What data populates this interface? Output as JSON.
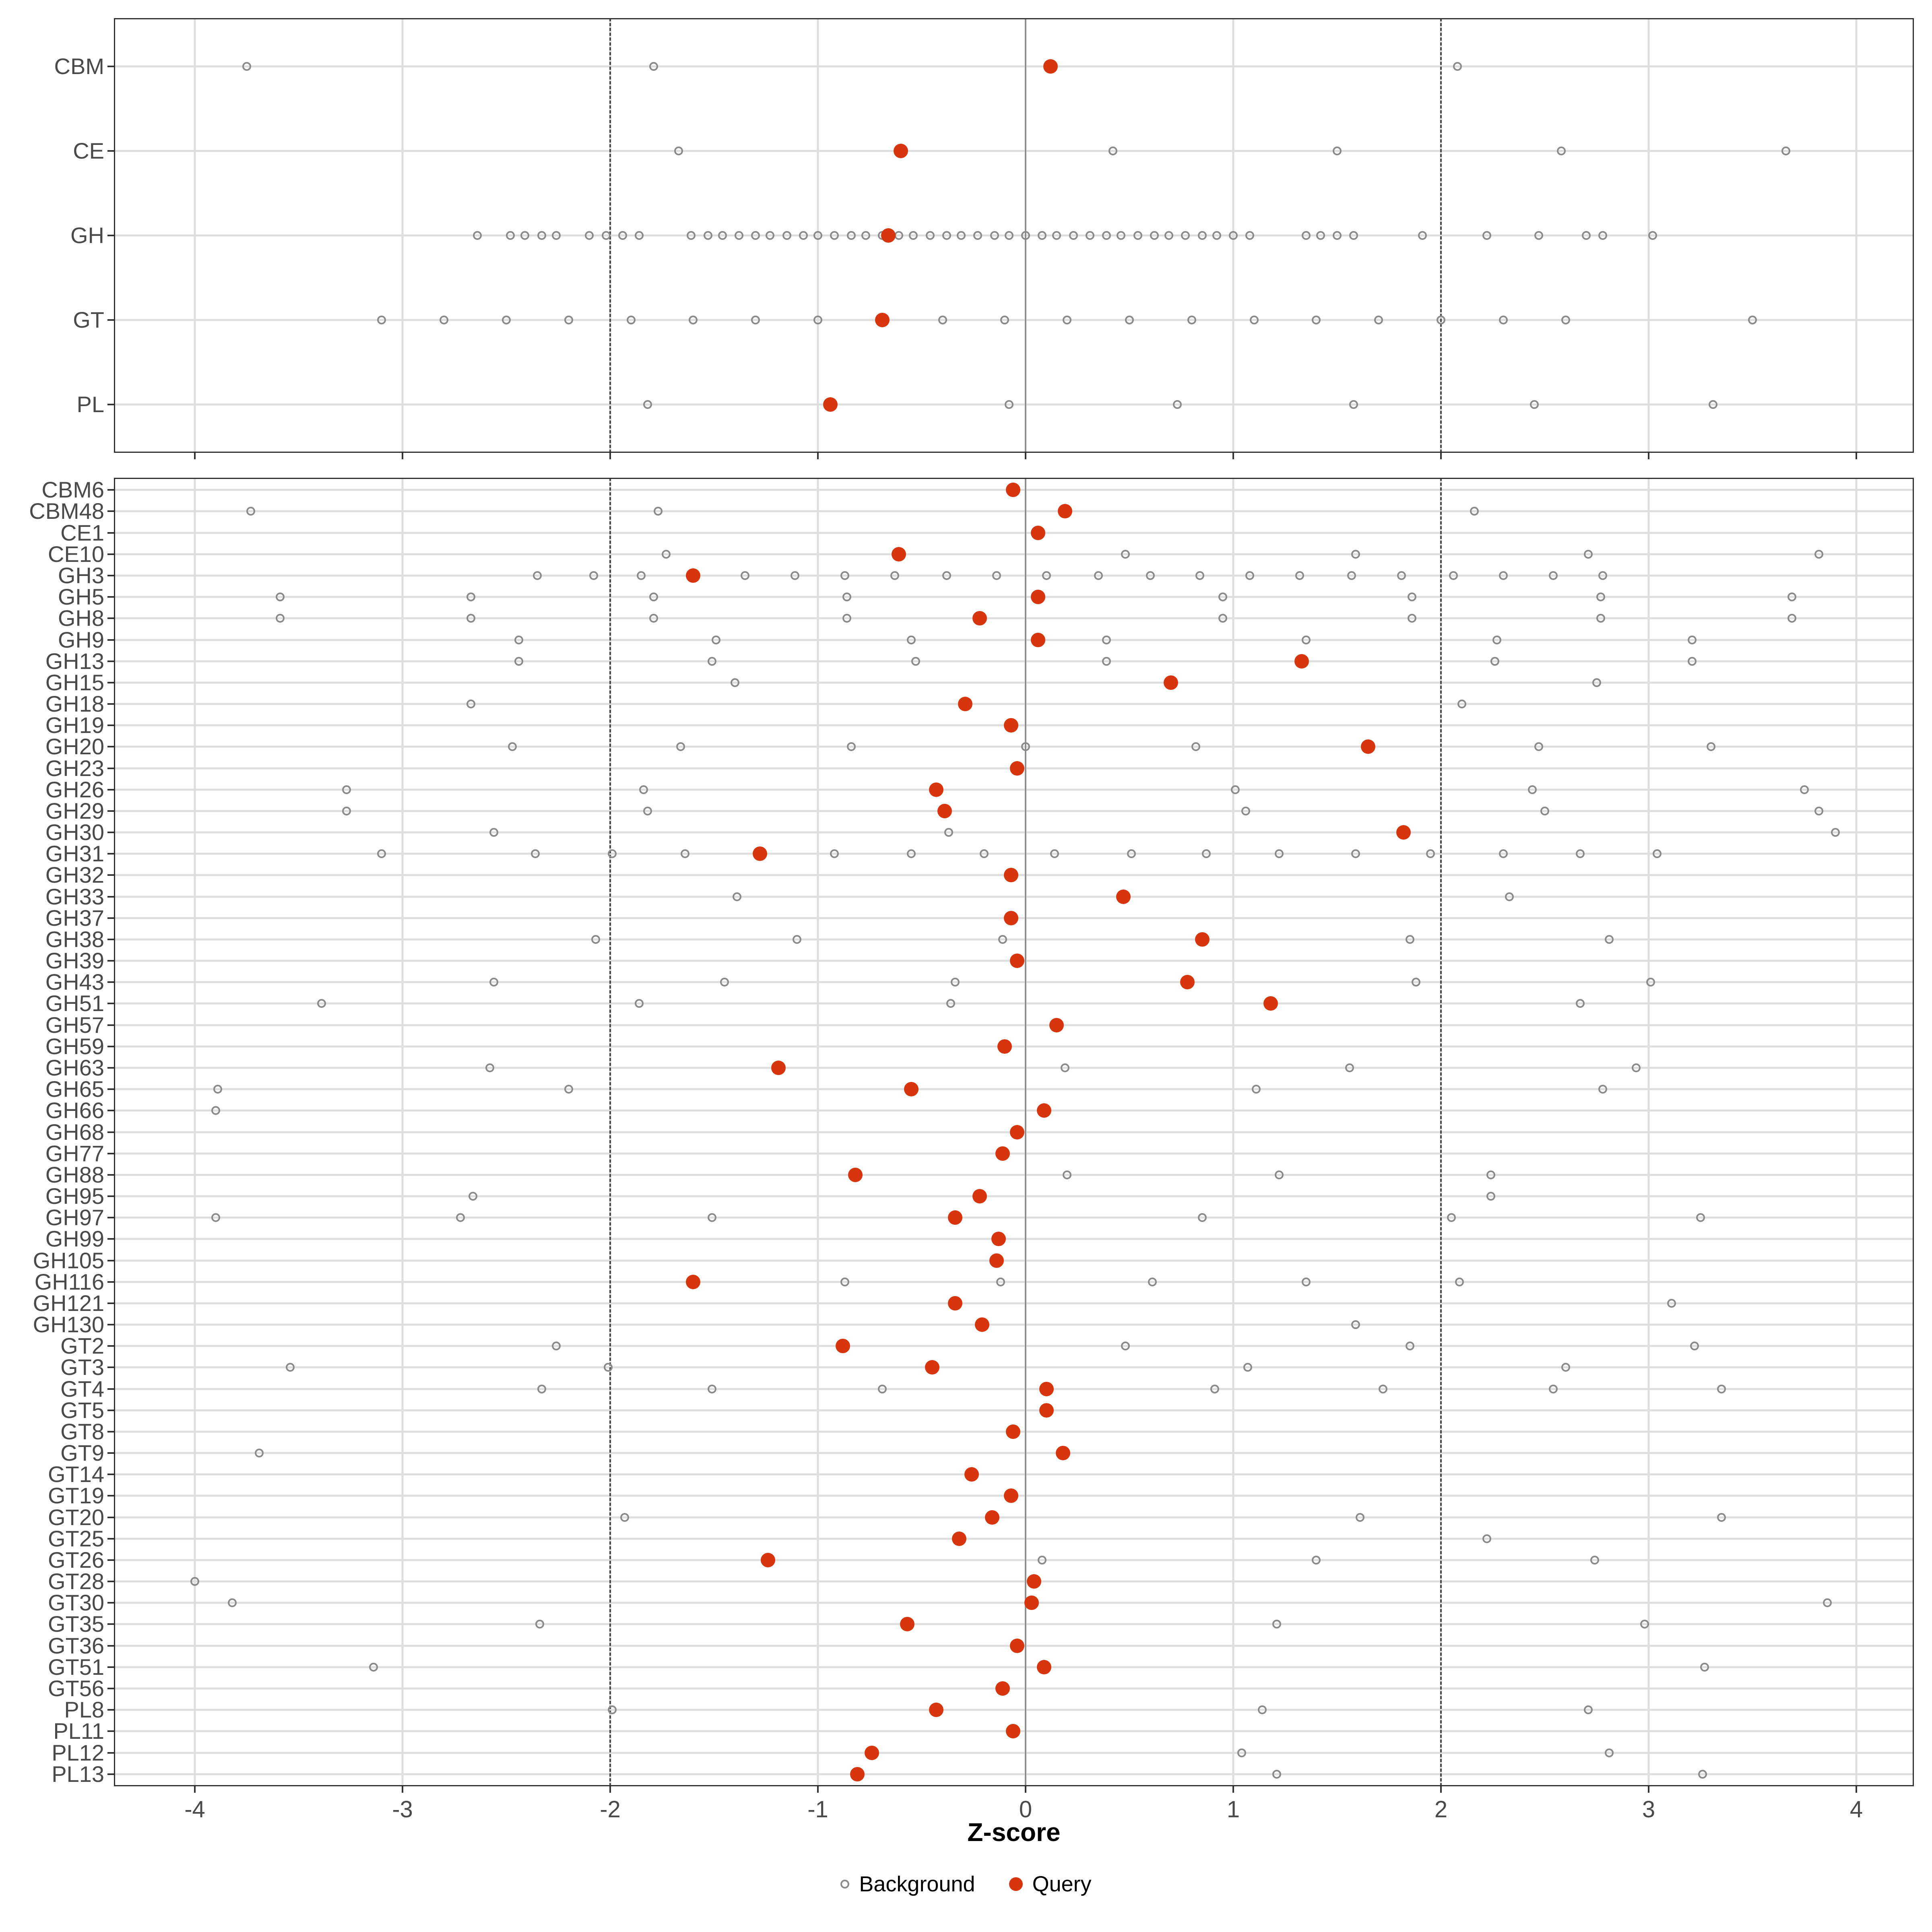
{
  "chart_data": {
    "type": "scatter",
    "xlabel": "Z-score",
    "x_ticks": [
      -4,
      -3,
      -2,
      -1,
      0,
      1,
      2,
      3,
      4
    ],
    "x_tick_labels": [
      "-4",
      "-3",
      "-2",
      "-1",
      "0",
      "1",
      "2",
      "3",
      "4"
    ],
    "x_range": [
      -4.39,
      4.28
    ],
    "grid": true,
    "reference_lines": {
      "solid_at": 0,
      "dashed_at": [
        -2,
        2
      ]
    },
    "legend_position": "bottom",
    "legend": [
      {
        "label": "Background",
        "marker": "open-circle",
        "color": "#8a8a8a"
      },
      {
        "label": "Query",
        "marker": "filled-circle",
        "color": "#d7350d"
      }
    ],
    "panels": [
      {
        "name": "class-level",
        "rows": [
          {
            "label": "CBM",
            "query": 0.12,
            "background": [
              -3.75,
              -1.79,
              2.08
            ]
          },
          {
            "label": "CE",
            "query": -0.6,
            "background": [
              -1.67,
              0.42,
              1.5,
              2.58,
              3.66
            ]
          },
          {
            "label": "GH",
            "query": -0.66,
            "background": [
              -2.64,
              -2.48,
              -2.41,
              -2.33,
              -2.26,
              -2.1,
              -2.02,
              -1.94,
              -1.86,
              -1.61,
              -1.53,
              -1.46,
              -1.38,
              -1.3,
              -1.23,
              -1.15,
              -1.07,
              -1.0,
              -0.92,
              -0.84,
              -0.77,
              -0.69,
              -0.61,
              -0.54,
              -0.46,
              -0.38,
              -0.31,
              -0.23,
              -0.15,
              -0.08,
              0.0,
              0.08,
              0.15,
              0.23,
              0.31,
              0.39,
              0.46,
              0.54,
              0.62,
              0.69,
              0.77,
              0.85,
              0.92,
              1.0,
              1.08,
              1.35,
              1.42,
              1.5,
              1.58,
              1.91,
              2.22,
              2.47,
              2.7,
              2.78,
              3.02
            ]
          },
          {
            "label": "GT",
            "query": -0.69,
            "background": [
              -3.1,
              -2.8,
              -2.5,
              -2.2,
              -1.9,
              -1.6,
              -1.3,
              -1.0,
              -0.4,
              -0.1,
              0.2,
              0.5,
              0.8,
              1.1,
              1.4,
              1.7,
              2.0,
              2.3,
              2.6,
              3.5
            ]
          },
          {
            "label": "PL",
            "query": -0.94,
            "background": [
              -1.82,
              -0.08,
              0.73,
              1.58,
              2.45,
              3.31
            ]
          }
        ]
      },
      {
        "name": "family-level",
        "rows": [
          {
            "label": "CBM6",
            "query": -0.06,
            "background": []
          },
          {
            "label": "CBM48",
            "query": 0.19,
            "background": [
              -3.73,
              -1.77,
              2.16
            ]
          },
          {
            "label": "CE1",
            "query": 0.06,
            "background": []
          },
          {
            "label": "CE10",
            "query": -0.61,
            "background": [
              -1.73,
              0.48,
              1.59,
              2.71,
              3.82
            ]
          },
          {
            "label": "GH3",
            "query": -1.6,
            "background": [
              -2.35,
              -2.08,
              -1.85,
              -1.35,
              -1.11,
              -0.87,
              -0.63,
              -0.38,
              -0.14,
              0.1,
              0.35,
              0.6,
              0.84,
              1.08,
              1.32,
              1.57,
              1.81,
              2.06,
              2.3,
              2.54,
              2.78
            ]
          },
          {
            "label": "GH5",
            "query": 0.06,
            "background": [
              -3.59,
              -2.67,
              -1.79,
              -0.86,
              0.95,
              1.86,
              2.77,
              3.69
            ]
          },
          {
            "label": "GH8",
            "query": -0.22,
            "background": [
              -3.59,
              -2.67,
              -1.79,
              -0.86,
              0.95,
              1.86,
              2.77,
              3.69
            ]
          },
          {
            "label": "GH9",
            "query": 0.06,
            "background": [
              -2.44,
              -1.49,
              -0.55,
              0.39,
              1.35,
              2.27,
              3.21
            ]
          },
          {
            "label": "GH13",
            "query": 1.33,
            "background": [
              -2.44,
              -1.51,
              -0.53,
              0.39,
              2.26,
              3.21
            ]
          },
          {
            "label": "GH15",
            "query": 0.7,
            "background": [
              -1.4,
              2.75
            ]
          },
          {
            "label": "GH18",
            "query": -0.29,
            "background": [
              -2.67,
              2.1
            ]
          },
          {
            "label": "GH19",
            "query": -0.07,
            "background": []
          },
          {
            "label": "GH20",
            "query": 1.65,
            "background": [
              -2.47,
              -1.66,
              -0.84,
              0.0,
              0.82,
              2.47,
              3.3
            ]
          },
          {
            "label": "GH23",
            "query": -0.04,
            "background": []
          },
          {
            "label": "GH26",
            "query": -0.43,
            "background": [
              -3.27,
              -1.84,
              1.01,
              2.44,
              3.75
            ]
          },
          {
            "label": "GH29",
            "query": -0.39,
            "background": [
              -3.27,
              -1.82,
              1.06,
              2.5,
              3.82
            ]
          },
          {
            "label": "GH30",
            "query": 1.82,
            "background": [
              -2.56,
              -0.37,
              3.9
            ]
          },
          {
            "label": "GH31",
            "query": -1.28,
            "background": [
              -3.1,
              -2.36,
              -1.99,
              -1.64,
              -0.92,
              -0.55,
              -0.2,
              0.14,
              0.51,
              0.87,
              1.22,
              1.59,
              1.95,
              2.3,
              2.67,
              3.04
            ]
          },
          {
            "label": "GH32",
            "query": -0.07,
            "background": []
          },
          {
            "label": "GH33",
            "query": 0.47,
            "background": [
              -1.39,
              2.33
            ]
          },
          {
            "label": "GH37",
            "query": -0.07,
            "background": []
          },
          {
            "label": "GH38",
            "query": 0.85,
            "background": [
              -2.07,
              -1.1,
              -0.11,
              1.85,
              2.81
            ]
          },
          {
            "label": "GH39",
            "query": -0.04,
            "background": []
          },
          {
            "label": "GH43",
            "query": 0.78,
            "background": [
              -2.56,
              -1.45,
              -0.34,
              1.88,
              3.01
            ]
          },
          {
            "label": "GH51",
            "query": 1.18,
            "background": [
              -3.39,
              -1.86,
              -0.36,
              2.67
            ]
          },
          {
            "label": "GH57",
            "query": 0.15,
            "background": []
          },
          {
            "label": "GH59",
            "query": -0.1,
            "background": []
          },
          {
            "label": "GH63",
            "query": -1.19,
            "background": [
              -2.58,
              0.19,
              1.56,
              2.94
            ]
          },
          {
            "label": "GH65",
            "query": -0.55,
            "background": [
              -3.89,
              -2.2,
              1.11,
              2.78
            ]
          },
          {
            "label": "GH66",
            "query": 0.09,
            "background": [
              -3.9
            ]
          },
          {
            "label": "GH68",
            "query": -0.04,
            "background": []
          },
          {
            "label": "GH77",
            "query": -0.11,
            "background": []
          },
          {
            "label": "GH88",
            "query": -0.82,
            "background": [
              0.2,
              1.22,
              2.24
            ]
          },
          {
            "label": "GH95",
            "query": -0.22,
            "background": [
              -2.66,
              2.24
            ]
          },
          {
            "label": "GH97",
            "query": -0.34,
            "background": [
              -3.9,
              -2.72,
              -1.51,
              0.85,
              2.05,
              3.25
            ]
          },
          {
            "label": "GH99",
            "query": -0.13,
            "background": []
          },
          {
            "label": "GH105",
            "query": -0.14,
            "background": []
          },
          {
            "label": "GH116",
            "query": -1.6,
            "background": [
              -0.87,
              -0.12,
              0.61,
              1.35,
              2.09
            ]
          },
          {
            "label": "GH121",
            "query": -0.34,
            "background": [
              3.11
            ]
          },
          {
            "label": "GH130",
            "query": -0.21,
            "background": [
              1.59
            ]
          },
          {
            "label": "GT2",
            "query": -0.88,
            "background": [
              -2.26,
              0.48,
              1.85,
              3.22
            ]
          },
          {
            "label": "GT3",
            "query": -0.45,
            "background": [
              -3.54,
              -2.01,
              1.07,
              2.6
            ]
          },
          {
            "label": "GT4",
            "query": 0.1,
            "background": [
              -2.33,
              -1.51,
              -0.69,
              0.91,
              1.72,
              2.54,
              3.35
            ]
          },
          {
            "label": "GT5",
            "query": 0.1,
            "background": []
          },
          {
            "label": "GT8",
            "query": -0.06,
            "background": []
          },
          {
            "label": "GT9",
            "query": 0.18,
            "background": [
              -3.69
            ]
          },
          {
            "label": "GT14",
            "query": -0.26,
            "background": []
          },
          {
            "label": "GT19",
            "query": -0.07,
            "background": []
          },
          {
            "label": "GT20",
            "query": -0.16,
            "background": [
              -1.93,
              1.61,
              3.35
            ]
          },
          {
            "label": "GT25",
            "query": -0.32,
            "background": [
              2.22
            ]
          },
          {
            "label": "GT26",
            "query": -1.24,
            "background": [
              0.08,
              1.4,
              2.74
            ]
          },
          {
            "label": "GT28",
            "query": 0.04,
            "background": [
              -4.0
            ]
          },
          {
            "label": "GT30",
            "query": 0.03,
            "background": [
              -3.82,
              3.86
            ]
          },
          {
            "label": "GT35",
            "query": -0.57,
            "background": [
              -2.34,
              1.21,
              2.98
            ]
          },
          {
            "label": "GT36",
            "query": -0.04,
            "background": []
          },
          {
            "label": "GT51",
            "query": 0.09,
            "background": [
              -3.14,
              3.27
            ]
          },
          {
            "label": "GT56",
            "query": -0.11,
            "background": []
          },
          {
            "label": "PL8",
            "query": -0.43,
            "background": [
              -1.99,
              1.14,
              2.71
            ]
          },
          {
            "label": "PL11",
            "query": -0.06,
            "background": []
          },
          {
            "label": "PL12",
            "query": -0.74,
            "background": [
              1.04,
              2.81
            ]
          },
          {
            "label": "PL13",
            "query": -0.81,
            "background": [
              1.21,
              3.26
            ]
          }
        ]
      }
    ]
  },
  "colors": {
    "query": "#d7350d",
    "background_stroke": "#8a8a8a",
    "gridline": "#dedede",
    "zero_line": "#7f7f7f",
    "dashed_line": "#474747",
    "panel_border": "#2f2f2f",
    "axis_text": "#4a4a4a"
  }
}
